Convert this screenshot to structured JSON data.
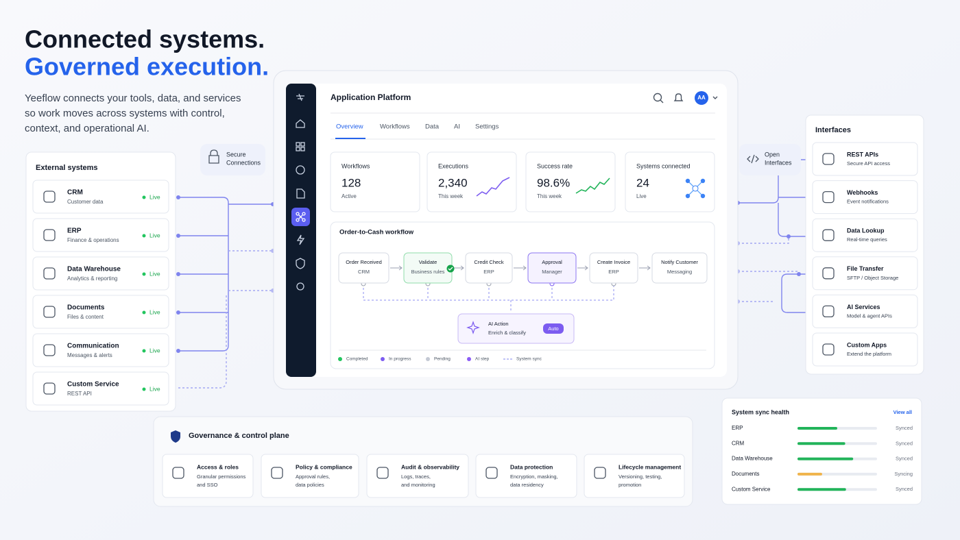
{
  "hero": {
    "title_line1": "Connected systems.",
    "title_line2": "Governed execution.",
    "description": [
      "Yeeflow connects your tools, data, and services",
      "so work moves across systems with control,",
      "context, and operational AI."
    ]
  },
  "external_systems": {
    "title": "External systems",
    "items": [
      {
        "name": "CRM",
        "detail": "Customer data",
        "status": "Live"
      },
      {
        "name": "ERP",
        "detail": "Finance & operations",
        "status": "Live"
      },
      {
        "name": "Data Warehouse",
        "detail": "Analytics & reporting",
        "status": "Live"
      },
      {
        "name": "Documents",
        "detail": "Files & content",
        "status": "Live"
      },
      {
        "name": "Communication",
        "detail": "Messages & alerts",
        "status": "Live"
      },
      {
        "name": "Custom Service",
        "detail": "REST API",
        "status": "Live"
      }
    ]
  },
  "badges": {
    "secure": [
      "Secure",
      "Connections"
    ],
    "open": [
      "Open",
      "Interfaces"
    ]
  },
  "app": {
    "title": "Application Platform",
    "avatar": "AA",
    "tabs": [
      "Overview",
      "Workflows",
      "Data",
      "AI",
      "Settings"
    ],
    "stats": [
      {
        "label": "Workflows",
        "value": "128",
        "sub": "Active"
      },
      {
        "label": "Executions",
        "value": "2,340",
        "sub": "This week"
      },
      {
        "label": "Success rate",
        "value": "98.6%",
        "sub": "This week"
      },
      {
        "label": "Systems connected",
        "value": "24",
        "sub": "Live"
      }
    ],
    "workflow": {
      "title": "Order-to-Cash workflow",
      "steps": [
        {
          "name": "Order Received",
          "detail": "CRM",
          "state": "pending"
        },
        {
          "name": "Validate",
          "detail": "Business rules",
          "state": "completed"
        },
        {
          "name": "Credit Check",
          "detail": "ERP",
          "state": "pending"
        },
        {
          "name": "Approval",
          "detail": "Manager",
          "state": "in_progress"
        },
        {
          "name": "Create Invoice",
          "detail": "ERP",
          "state": "pending"
        },
        {
          "name": "Notify Customer",
          "detail": "Messaging",
          "state": "pending"
        }
      ],
      "ai": {
        "name": "AI Action",
        "detail": "Enrich & classify",
        "tag": "Auto"
      },
      "legend": [
        {
          "name": "Completed",
          "color": "#22c55e",
          "marker": "dot"
        },
        {
          "name": "In progress",
          "color": "#7c5cf0",
          "marker": "dot"
        },
        {
          "name": "Pending",
          "color": "#c4c9d4",
          "marker": "dot"
        },
        {
          "name": "AI step",
          "color": "#8b5cf6",
          "marker": "dot"
        },
        {
          "name": "System sync",
          "color": "#7f84ee",
          "marker": "dashed"
        }
      ]
    }
  },
  "interfaces": {
    "title": "Interfaces",
    "items": [
      {
        "name": "REST APIs",
        "detail": "Secure API access"
      },
      {
        "name": "Webhooks",
        "detail": "Event notifications"
      },
      {
        "name": "Data Lookup",
        "detail": "Real-time queries"
      },
      {
        "name": "File Transfer",
        "detail": "SFTP / Object Storage"
      },
      {
        "name": "AI Services",
        "detail": "Model & agent APIs"
      },
      {
        "name": "Custom Apps",
        "detail": "Extend the platform"
      }
    ]
  },
  "governance": {
    "title": "Governance & control plane",
    "items": [
      {
        "name": "Access & roles",
        "detail": [
          "Granular permissions",
          "and SSO"
        ]
      },
      {
        "name": "Policy & compliance",
        "detail": [
          "Approval rules,",
          "data policies"
        ]
      },
      {
        "name": "Audit & observability",
        "detail": [
          "Logs, traces,",
          "and monitoring"
        ]
      },
      {
        "name": "Data protection",
        "detail": [
          "Encryption, masking,",
          "data residency"
        ]
      },
      {
        "name": "Lifecycle management",
        "detail": [
          "Versioning, testing,",
          "promotion"
        ]
      }
    ]
  },
  "sync_health": {
    "title": "System sync health",
    "link": "View all",
    "rows": [
      {
        "name": "ERP",
        "progress": 50,
        "status": "Synced",
        "color": "#22b45a"
      },
      {
        "name": "CRM",
        "progress": 60,
        "status": "Synced",
        "color": "#22b45a"
      },
      {
        "name": "Data Warehouse",
        "progress": 70,
        "status": "Synced",
        "color": "#22b45a"
      },
      {
        "name": "Documents",
        "progress": 31,
        "status": "Syncing",
        "color": "#f0b44c"
      },
      {
        "name": "Custom Service",
        "progress": 61,
        "status": "Synced",
        "color": "#22b45a"
      }
    ]
  }
}
